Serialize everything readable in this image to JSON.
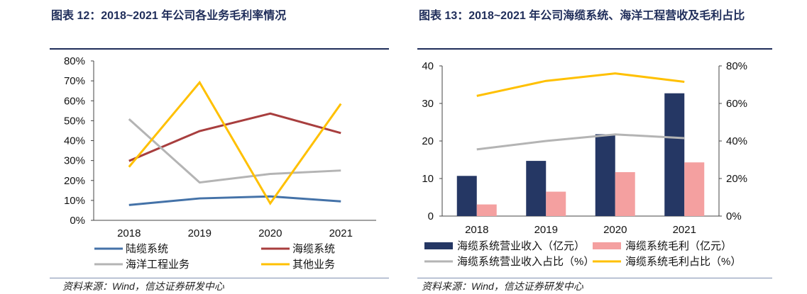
{
  "left": {
    "title": "图表 12：2018~2021 年公司各业务毛利率情况",
    "source": "资料来源：Wind，信达证券研发中心"
  },
  "right": {
    "title": "图表 13：2018~2021 年公司海缆系统、海洋工程营收及毛利占比",
    "source": "资料来源：Wind，信达证券研发中心"
  },
  "chart_data": [
    {
      "type": "line",
      "categories": [
        "2018",
        "2019",
        "2020",
        "2021"
      ],
      "ylim": [
        0,
        80
      ],
      "yticks": [
        "0%",
        "10%",
        "20%",
        "30%",
        "40%",
        "50%",
        "60%",
        "70%",
        "80%"
      ],
      "legend": "bottom",
      "series": [
        {
          "name": "陆缆系统",
          "color": "#4472a8",
          "values": [
            7.7,
            11,
            12,
            9.5
          ]
        },
        {
          "name": "海缆系统",
          "color": "#a83e3e",
          "values": [
            29.8,
            44.8,
            53.6,
            43.8
          ]
        },
        {
          "name": "海洋工程业务",
          "color": "#b4b4b4",
          "values": [
            50.8,
            19,
            23.3,
            25
          ]
        },
        {
          "name": "其他业务",
          "color": "#ffc000",
          "values": [
            26.8,
            69.2,
            8.5,
            58.5
          ]
        }
      ]
    },
    {
      "type": "bar",
      "categories": [
        "2018",
        "2019",
        "2020",
        "2021"
      ],
      "ylim": [
        0,
        40
      ],
      "yticks": [
        "0",
        "10",
        "20",
        "30",
        "40"
      ],
      "y2lim": [
        0,
        80
      ],
      "y2ticks": [
        "0%",
        "20%",
        "40%",
        "60%",
        "80%"
      ],
      "legend": "bottom",
      "bars": [
        {
          "name": "海缆系统营业收入（亿元）",
          "color": "#253764",
          "values": [
            10.7,
            14.7,
            21.8,
            32.7
          ]
        },
        {
          "name": "海缆系统毛利（亿元）",
          "color": "#f4a0a0",
          "values": [
            3.1,
            6.5,
            11.7,
            14.3
          ]
        }
      ],
      "lines": [
        {
          "name": "海缆系统营业收入占比（%）",
          "color": "#b4b4b4",
          "values": [
            35.5,
            40,
            43.5,
            41.5
          ]
        },
        {
          "name": "海缆系统毛利占比（%）",
          "color": "#ffc000",
          "values": [
            64,
            72,
            76,
            71.5
          ]
        }
      ]
    }
  ]
}
